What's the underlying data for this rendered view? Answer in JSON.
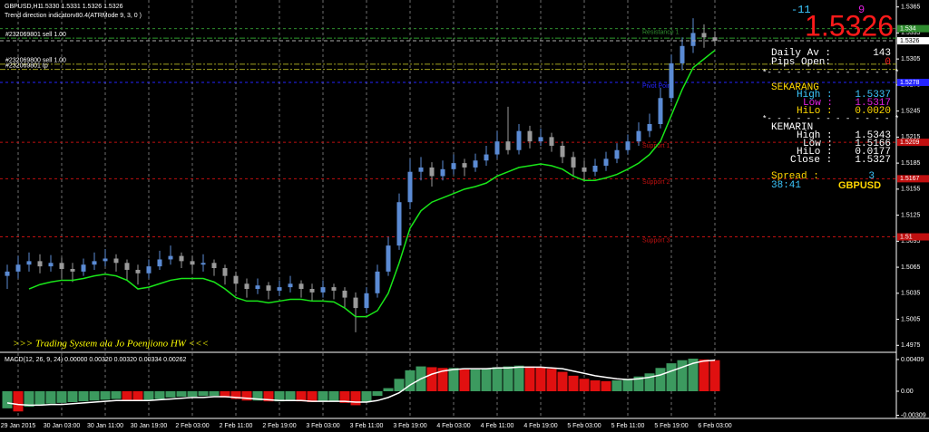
{
  "header": {
    "symbol": "GBPUSD,H1",
    "quote": "1.5330 1.5331 1.5326 1.5326",
    "indicator": "Trend direction indicatorv80.4(ATRMode 9, 3, 0 )"
  },
  "banner": ">>> Trading System ala Jo Poenjiono HW <<<",
  "panel": {
    "change": "-11",
    "count": "9",
    "price": "1.5326",
    "daily_av": {
      "label": "Daily Av :",
      "value": "143"
    },
    "pips_open": {
      "label": "Pips Open:",
      "value": "0"
    },
    "separator": "*- - - - - - - - - - - - - *",
    "today": {
      "title": "SEKARANG",
      "high": {
        "label": "High :",
        "value": "1.5337"
      },
      "low": {
        "label": "Low :",
        "value": "1.5317"
      },
      "hilo": {
        "label": "HiLo :",
        "value": "0.0020"
      }
    },
    "yesterday": {
      "title": "KEMARIN",
      "high": {
        "label": "High :",
        "value": "1.5343"
      },
      "low": {
        "label": "Low :",
        "value": "1.5166"
      },
      "hilo": {
        "label": "HiLo :",
        "value": "0.0177"
      },
      "close": {
        "label": "Close :",
        "value": "1.5327"
      }
    },
    "spread": {
      "label": "Spread :",
      "value": "3"
    },
    "clock": "38:41",
    "symbol": "GBPUSD"
  },
  "chart_data": {
    "type": "candlestick",
    "categories": [
      null,
      "29 Jan 2015",
      null,
      null,
      null,
      "30 Jan 03:00",
      null,
      null,
      null,
      "30 Jan 11:00",
      null,
      null,
      null,
      "30 Jan 19:00",
      null,
      null,
      null,
      "2 Feb 03:00",
      null,
      null,
      null,
      "2 Feb 11:00",
      null,
      null,
      null,
      "2 Feb 19:00",
      null,
      null,
      null,
      "3 Feb 03:00",
      null,
      null,
      null,
      "3 Feb 11:00",
      null,
      null,
      null,
      "3 Feb 19:00",
      null,
      null,
      null,
      "4 Feb 03:00",
      null,
      null,
      null,
      "4 Feb 11:00",
      null,
      null,
      null,
      "4 Feb 19:00",
      null,
      null,
      null,
      "5 Feb 03:00",
      null,
      null,
      null,
      "5 Feb 11:00",
      null,
      null,
      null,
      "5 Feb 19:00",
      null,
      null,
      null,
      "6 Feb 03:00"
    ],
    "candles": [
      [
        1.5055,
        1.5068,
        1.504,
        1.506
      ],
      [
        1.506,
        1.5078,
        1.5052,
        1.5068
      ],
      [
        1.5068,
        1.5082,
        1.506,
        1.5072
      ],
      [
        1.5072,
        1.508,
        1.5058,
        1.5066
      ],
      [
        1.5066,
        1.5079,
        1.506,
        1.507
      ],
      [
        1.507,
        1.5076,
        1.5052,
        1.5063
      ],
      [
        1.5063,
        1.507,
        1.5048,
        1.506
      ],
      [
        1.506,
        1.5075,
        1.5055,
        1.5068
      ],
      [
        1.5068,
        1.5082,
        1.5062,
        1.5072
      ],
      [
        1.5072,
        1.5086,
        1.5066,
        1.5075
      ],
      [
        1.5075,
        1.508,
        1.506,
        1.507
      ],
      [
        1.507,
        1.5074,
        1.505,
        1.5062
      ],
      [
        1.5062,
        1.5068,
        1.5045,
        1.5058
      ],
      [
        1.5058,
        1.5074,
        1.5052,
        1.5066
      ],
      [
        1.5066,
        1.5084,
        1.5062,
        1.5074
      ],
      [
        1.5074,
        1.509,
        1.5068,
        1.5078
      ],
      [
        1.5078,
        1.5082,
        1.5064,
        1.5072
      ],
      [
        1.5072,
        1.5078,
        1.5058,
        1.5068
      ],
      [
        1.5068,
        1.508,
        1.506,
        1.507
      ],
      [
        1.507,
        1.5074,
        1.5055,
        1.5064
      ],
      [
        1.5064,
        1.5068,
        1.5045,
        1.5055
      ],
      [
        1.5055,
        1.506,
        1.5036,
        1.5046
      ],
      [
        1.5046,
        1.5052,
        1.503,
        1.504
      ],
      [
        1.504,
        1.5052,
        1.5034,
        1.5044
      ],
      [
        1.5044,
        1.5048,
        1.5028,
        1.5038
      ],
      [
        1.5038,
        1.505,
        1.5032,
        1.5042
      ],
      [
        1.5042,
        1.5055,
        1.5036,
        1.5046
      ],
      [
        1.5046,
        1.505,
        1.503,
        1.504
      ],
      [
        1.504,
        1.5046,
        1.5026,
        1.5036
      ],
      [
        1.5036,
        1.505,
        1.503,
        1.5042
      ],
      [
        1.5042,
        1.5046,
        1.5028,
        1.5038
      ],
      [
        1.5038,
        1.5042,
        1.5018,
        1.503
      ],
      [
        1.503,
        1.5036,
        1.499,
        1.5018
      ],
      [
        1.5018,
        1.5042,
        1.5012,
        1.5035
      ],
      [
        1.5035,
        1.5068,
        1.503,
        1.506
      ],
      [
        1.506,
        1.51,
        1.5055,
        1.509
      ],
      [
        1.509,
        1.515,
        1.5085,
        1.514
      ],
      [
        1.514,
        1.519,
        1.5132,
        1.5175
      ],
      [
        1.5175,
        1.5192,
        1.5165,
        1.518
      ],
      [
        1.518,
        1.5186,
        1.5158,
        1.517
      ],
      [
        1.517,
        1.5188,
        1.5165,
        1.5178
      ],
      [
        1.5178,
        1.5195,
        1.5172,
        1.5185
      ],
      [
        1.5185,
        1.519,
        1.517,
        1.518
      ],
      [
        1.518,
        1.5196,
        1.5175,
        1.5188
      ],
      [
        1.5188,
        1.5205,
        1.5182,
        1.5195
      ],
      [
        1.5195,
        1.5222,
        1.519,
        1.521
      ],
      [
        1.521,
        1.525,
        1.5195,
        1.52
      ],
      [
        1.52,
        1.523,
        1.5195,
        1.5222
      ],
      [
        1.5222,
        1.5228,
        1.5202,
        1.521
      ],
      [
        1.521,
        1.5225,
        1.5205,
        1.5215
      ],
      [
        1.5215,
        1.522,
        1.5198,
        1.5205
      ],
      [
        1.5205,
        1.521,
        1.5185,
        1.5192
      ],
      [
        1.5192,
        1.5198,
        1.517,
        1.518
      ],
      [
        1.518,
        1.5188,
        1.5165,
        1.5175
      ],
      [
        1.5175,
        1.519,
        1.517,
        1.5182
      ],
      [
        1.5182,
        1.5198,
        1.5176,
        1.519
      ],
      [
        1.519,
        1.5208,
        1.5185,
        1.52
      ],
      [
        1.52,
        1.5218,
        1.5195,
        1.521
      ],
      [
        1.521,
        1.5232,
        1.5205,
        1.5222
      ],
      [
        1.5222,
        1.5242,
        1.5215,
        1.523
      ],
      [
        1.523,
        1.5272,
        1.5225,
        1.526
      ],
      [
        1.526,
        1.531,
        1.5255,
        1.53
      ],
      [
        1.53,
        1.533,
        1.5292,
        1.532
      ],
      [
        1.532,
        1.5352,
        1.5312,
        1.5335
      ],
      [
        1.5335,
        1.5345,
        1.5318,
        1.533
      ],
      [
        1.533,
        1.5337,
        1.532,
        1.5326
      ]
    ],
    "up_color": "#5b8bd4",
    "down_color": "#9a9a9a",
    "trend_line": {
      "color": "#19e619",
      "values": [
        null,
        null,
        1.504,
        1.5045,
        1.5048,
        1.505,
        1.505,
        1.5052,
        1.5055,
        1.5057,
        1.5055,
        1.505,
        1.504,
        1.5042,
        1.5046,
        1.505,
        1.5052,
        1.5052,
        1.5052,
        1.5048,
        1.504,
        1.503,
        1.5026,
        1.5026,
        1.5024,
        1.5026,
        1.5028,
        1.5028,
        1.5026,
        1.5026,
        1.5025,
        1.5018,
        1.5008,
        1.5008,
        1.5015,
        1.5035,
        1.507,
        1.511,
        1.513,
        1.514,
        1.5145,
        1.515,
        1.5155,
        1.5158,
        1.5162,
        1.517,
        1.5175,
        1.518,
        1.5182,
        1.5184,
        1.5182,
        1.5178,
        1.517,
        1.5165,
        1.5165,
        1.5168,
        1.5172,
        1.5178,
        1.5185,
        1.5195,
        1.521,
        1.524,
        1.527,
        1.5295,
        1.5305,
        1.5315
      ]
    },
    "levels": [
      {
        "name": "Resistance 1",
        "value": 1.534,
        "color": "#2e8b2e"
      },
      {
        "name": "Pivot Point",
        "value": 1.5278,
        "color": "#2424ff"
      },
      {
        "name": "Support 1",
        "value": 1.5209,
        "color": "#c01010"
      },
      {
        "name": "Support 2",
        "value": 1.5167,
        "color": "#c01010"
      },
      {
        "name": "Support 3",
        "value": 1.51,
        "color": "#c01010"
      }
    ],
    "orders": [
      {
        "label": "#232069801 sell 1.00",
        "value": 1.5329,
        "color": "#2e9a2e"
      },
      {
        "label": "#232069800 sell 1.00",
        "value": 1.5299,
        "color": "#a0a020"
      },
      {
        "label": "#232069801 tp",
        "value": 1.5293,
        "color": "#a0a020"
      }
    ],
    "ylim": [
      1.4968,
      1.5373
    ],
    "yticks": [
      1.5365,
      1.5335,
      1.5305,
      1.5275,
      1.5245,
      1.5215,
      1.5185,
      1.5155,
      1.5125,
      1.5095,
      1.5065,
      1.5035,
      1.5005,
      1.4975
    ],
    "grid": "vertical",
    "macd": {
      "label": "MACD(12, 26, 9, 24) 0.00000 0.00320 0.00320 0.00334 0.00262",
      "values": [
        -0.0022,
        -0.0026,
        -0.002,
        -0.0018,
        -0.0016,
        -0.0015,
        -0.0014,
        -0.0013,
        -0.0012,
        -0.0011,
        -0.001,
        -0.0011,
        -0.0012,
        -0.0011,
        -0.001,
        -0.0008,
        -0.0007,
        -0.0007,
        -0.0006,
        -0.0006,
        -0.0008,
        -0.001,
        -0.0012,
        -0.0012,
        -0.0013,
        -0.0013,
        -0.0012,
        -0.0013,
        -0.0014,
        -0.0013,
        -0.0013,
        -0.0015,
        -0.0018,
        -0.0014,
        -0.0006,
        0.0004,
        0.0016,
        0.0027,
        0.0032,
        0.0031,
        0.003,
        0.003,
        0.0028,
        0.0028,
        0.0029,
        0.0031,
        0.0032,
        0.0033,
        0.0032,
        0.0031,
        0.0029,
        0.0025,
        0.002,
        0.0016,
        0.0014,
        0.0013,
        0.0014,
        0.0016,
        0.0019,
        0.0023,
        0.003,
        0.0036,
        0.004,
        0.0042,
        0.0041,
        0.004
      ],
      "signal": [
        -0.0015,
        -0.0017,
        -0.0018,
        -0.0018,
        -0.0017,
        -0.0017,
        -0.0016,
        -0.0015,
        -0.0014,
        -0.0013,
        -0.0012,
        -0.0012,
        -0.0012,
        -0.0012,
        -0.0011,
        -0.001,
        -0.0009,
        -0.0008,
        -0.0008,
        -0.0007,
        -0.0007,
        -0.0008,
        -0.0009,
        -0.001,
        -0.0011,
        -0.0012,
        -0.0012,
        -0.0012,
        -0.0013,
        -0.0013,
        -0.0013,
        -0.0013,
        -0.0014,
        -0.0014,
        -0.0012,
        -0.0008,
        -0.0002,
        0.0008,
        0.0016,
        0.0022,
        0.0026,
        0.0028,
        0.0029,
        0.0029,
        0.0029,
        0.003,
        0.003,
        0.0031,
        0.0031,
        0.0031,
        0.003,
        0.0029,
        0.0026,
        0.0023,
        0.002,
        0.0018,
        0.0016,
        0.0015,
        0.0016,
        0.0018,
        0.0021,
        0.0026,
        0.0031,
        0.0036,
        0.0039,
        0.004
      ],
      "rise_color": "#3c9a5f",
      "fall_color": "#e01010",
      "signal_color": "#ffffff",
      "ylim": [
        -0.0035,
        0.0049
      ],
      "yticks": [
        0.00409,
        {
          "value": 0,
          "label": "0.00"
        },
        -0.00309
      ]
    }
  }
}
